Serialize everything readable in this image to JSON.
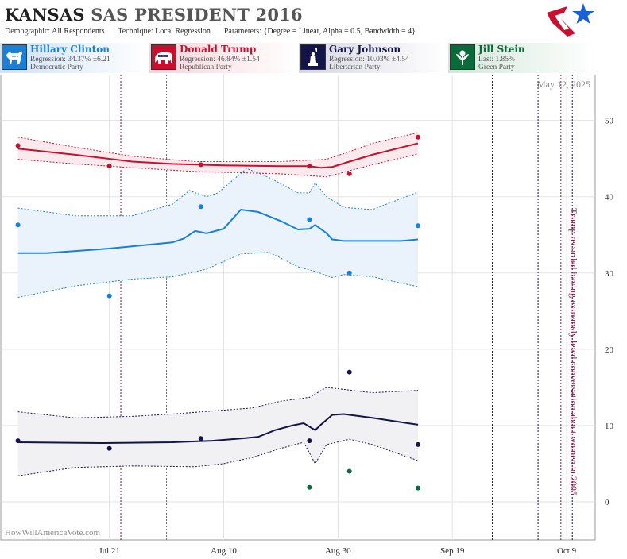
{
  "header": {
    "title_state": "KANSAS",
    "title_rest": "SAS PRESIDENT 2016",
    "params": [
      {
        "key": "Demographic:",
        "value": "All Respondents"
      },
      {
        "key": "Technique:",
        "value": "Local Regression"
      },
      {
        "key": "Parameters:",
        "value": "{Degree = Linear, Alpha = 0.5, Bandwidth = 4}"
      }
    ]
  },
  "legend": [
    {
      "name": "Hillary Clinton",
      "stat": "Regression: 34.37% ±6.21",
      "party": "Democratic Party",
      "color": "#1a7fd6",
      "icon": "donkey-icon"
    },
    {
      "name": "Donald Trump",
      "stat": "Regression: 46.84% ±1.54",
      "party": "Republican Party",
      "color": "#c8102e",
      "icon": "elephant-icon"
    },
    {
      "name": "Gary Johnson",
      "stat": "Regression: 10.03% ±4.54",
      "party": "Libertarian Party",
      "color": "#14144a",
      "icon": "liberty-icon"
    },
    {
      "name": "Jill Stein",
      "stat": "Last: 1.85%",
      "party": "Green Party",
      "color": "#0a6b3a",
      "icon": "flower-icon"
    }
  ],
  "chart_data": {
    "type": "line",
    "date_label": "May 12, 2025",
    "watermark": "HowWillAmericaVote.com",
    "x_ticks": [
      "Jul 21",
      "Aug 10",
      "Aug 30",
      "Sep 19",
      "Oct 9"
    ],
    "y_ticks": [
      0,
      10,
      20,
      30,
      40,
      50
    ],
    "ylim": [
      -5,
      56
    ],
    "xlim": [
      "2016-07-02",
      "2016-10-14"
    ],
    "annotation": "Trump recorded having extremely lewd conversation about women in 2005",
    "series": [
      {
        "name": "Hillary Clinton",
        "color": "#1a7fd6",
        "fill": "#eaf3fc",
        "line": [
          [
            "2016-07-05",
            32.6
          ],
          [
            "2016-07-10",
            32.6
          ],
          [
            "2016-07-21",
            33.2
          ],
          [
            "2016-08-01",
            34.0
          ],
          [
            "2016-08-03",
            34.5
          ],
          [
            "2016-08-05",
            35.5
          ],
          [
            "2016-08-07",
            35.2
          ],
          [
            "2016-08-10",
            35.8
          ],
          [
            "2016-08-13",
            38.3
          ],
          [
            "2016-08-16",
            38.0
          ],
          [
            "2016-08-20",
            36.8
          ],
          [
            "2016-08-23",
            35.7
          ],
          [
            "2016-08-25",
            35.8
          ],
          [
            "2016-08-26",
            36.3
          ],
          [
            "2016-08-28",
            35.2
          ],
          [
            "2016-08-29",
            34.4
          ],
          [
            "2016-08-31",
            34.2
          ],
          [
            "2016-09-10",
            34.2
          ],
          [
            "2016-09-13",
            34.4
          ]
        ],
        "upper": [
          [
            "2016-07-05",
            38.5
          ],
          [
            "2016-07-15",
            37.5
          ],
          [
            "2016-07-25",
            37.5
          ],
          [
            "2016-08-01",
            39.0
          ],
          [
            "2016-08-04",
            40.8
          ],
          [
            "2016-08-07",
            40.0
          ],
          [
            "2016-08-09",
            40.5
          ],
          [
            "2016-08-14",
            43.7
          ],
          [
            "2016-08-18",
            42.5
          ],
          [
            "2016-08-23",
            40.5
          ],
          [
            "2016-08-25",
            40.5
          ],
          [
            "2016-08-26",
            41.8
          ],
          [
            "2016-08-28",
            40.0
          ],
          [
            "2016-08-31",
            38.6
          ],
          [
            "2016-09-05",
            38.3
          ],
          [
            "2016-09-13",
            40.6
          ]
        ],
        "lower": [
          [
            "2016-07-05",
            26.8
          ],
          [
            "2016-07-15",
            28.3
          ],
          [
            "2016-07-25",
            29.2
          ],
          [
            "2016-08-01",
            29.5
          ],
          [
            "2016-08-07",
            30.5
          ],
          [
            "2016-08-13",
            32.5
          ],
          [
            "2016-08-18",
            32.7
          ],
          [
            "2016-08-23",
            30.8
          ],
          [
            "2016-08-26",
            30.2
          ],
          [
            "2016-08-29",
            29.4
          ],
          [
            "2016-08-31",
            29.8
          ],
          [
            "2016-09-05",
            29.5
          ],
          [
            "2016-09-13",
            28.2
          ]
        ],
        "points": [
          [
            "2016-07-05",
            36.3
          ],
          [
            "2016-07-21",
            27.0
          ],
          [
            "2016-08-06",
            38.7
          ],
          [
            "2016-08-25",
            37.0
          ],
          [
            "2016-09-01",
            30.0
          ],
          [
            "2016-09-13",
            36.2
          ]
        ]
      },
      {
        "name": "Donald Trump",
        "color": "#c8102e",
        "fill": "#fbeaed",
        "line": [
          [
            "2016-07-05",
            46.3
          ],
          [
            "2016-07-15",
            45.5
          ],
          [
            "2016-07-25",
            44.6
          ],
          [
            "2016-08-01",
            44.3
          ],
          [
            "2016-08-10",
            44.1
          ],
          [
            "2016-08-20",
            44.0
          ],
          [
            "2016-08-25",
            44.0
          ],
          [
            "2016-08-27",
            43.8
          ],
          [
            "2016-08-29",
            43.9
          ],
          [
            "2016-09-01",
            44.6
          ],
          [
            "2016-09-05",
            45.5
          ],
          [
            "2016-09-13",
            47.0
          ]
        ],
        "upper": [
          [
            "2016-07-05",
            47.8
          ],
          [
            "2016-07-15",
            46.5
          ],
          [
            "2016-07-25",
            45.3
          ],
          [
            "2016-08-05",
            44.6
          ],
          [
            "2016-08-20",
            44.6
          ],
          [
            "2016-08-28",
            44.9
          ],
          [
            "2016-09-01",
            45.9
          ],
          [
            "2016-09-05",
            47.0
          ],
          [
            "2016-09-13",
            48.4
          ]
        ],
        "lower": [
          [
            "2016-07-05",
            44.9
          ],
          [
            "2016-07-15",
            44.3
          ],
          [
            "2016-07-25",
            43.8
          ],
          [
            "2016-08-05",
            43.3
          ],
          [
            "2016-08-20",
            43.0
          ],
          [
            "2016-08-28",
            42.6
          ],
          [
            "2016-09-01",
            43.4
          ],
          [
            "2016-09-05",
            44.2
          ],
          [
            "2016-09-13",
            45.6
          ]
        ],
        "points": [
          [
            "2016-07-05",
            46.7
          ],
          [
            "2016-07-21",
            44.0
          ],
          [
            "2016-08-06",
            44.2
          ],
          [
            "2016-08-25",
            44.0
          ],
          [
            "2016-09-01",
            43.0
          ],
          [
            "2016-09-13",
            47.8
          ]
        ]
      },
      {
        "name": "Gary Johnson",
        "color": "#14144a",
        "fill": "#f1f1f4",
        "line": [
          [
            "2016-07-05",
            7.8
          ],
          [
            "2016-07-20",
            7.7
          ],
          [
            "2016-08-01",
            7.8
          ],
          [
            "2016-08-08",
            8.0
          ],
          [
            "2016-08-13",
            8.3
          ],
          [
            "2016-08-16",
            8.5
          ],
          [
            "2016-08-19",
            9.4
          ],
          [
            "2016-08-22",
            10.0
          ],
          [
            "2016-08-24",
            10.3
          ],
          [
            "2016-08-26",
            9.4
          ],
          [
            "2016-08-27",
            10.1
          ],
          [
            "2016-08-29",
            11.4
          ],
          [
            "2016-08-31",
            11.5
          ],
          [
            "2016-09-05",
            11.0
          ],
          [
            "2016-09-13",
            10.1
          ]
        ],
        "upper": [
          [
            "2016-07-05",
            11.8
          ],
          [
            "2016-07-15",
            11.0
          ],
          [
            "2016-07-25",
            11.2
          ],
          [
            "2016-08-01",
            11.5
          ],
          [
            "2016-08-08",
            11.9
          ],
          [
            "2016-08-15",
            12.3
          ],
          [
            "2016-08-20",
            13.2
          ],
          [
            "2016-08-25",
            13.7
          ],
          [
            "2016-08-28",
            15.0
          ],
          [
            "2016-09-05",
            14.3
          ],
          [
            "2016-09-13",
            14.6
          ]
        ],
        "lower": [
          [
            "2016-07-05",
            3.4
          ],
          [
            "2016-07-15",
            4.5
          ],
          [
            "2016-07-25",
            4.7
          ],
          [
            "2016-08-05",
            4.6
          ],
          [
            "2016-08-10",
            5.0
          ],
          [
            "2016-08-15",
            5.8
          ],
          [
            "2016-08-20",
            7.0
          ],
          [
            "2016-08-24",
            7.8
          ],
          [
            "2016-08-26",
            5.0
          ],
          [
            "2016-08-28",
            7.5
          ],
          [
            "2016-09-01",
            8.2
          ],
          [
            "2016-09-05",
            7.5
          ],
          [
            "2016-09-13",
            5.4
          ]
        ],
        "points": [
          [
            "2016-07-05",
            8.0
          ],
          [
            "2016-07-21",
            7.0
          ],
          [
            "2016-08-06",
            8.3
          ],
          [
            "2016-08-25",
            8.0
          ],
          [
            "2016-09-01",
            17.0
          ],
          [
            "2016-09-13",
            7.5
          ]
        ]
      },
      {
        "name": "Jill Stein",
        "color": "#0a6b3a",
        "points": [
          [
            "2016-08-25",
            1.9
          ],
          [
            "2016-09-01",
            4.0
          ],
          [
            "2016-09-13",
            1.8
          ]
        ]
      }
    ],
    "vlines": [
      {
        "date": "2016-07-23",
        "color": "#8b1538"
      },
      {
        "date": "2016-07-31",
        "color": "#1a7fd6"
      },
      {
        "date": "2016-09-26",
        "color": "#14144a"
      },
      {
        "date": "2016-10-04",
        "color": "#14144a"
      },
      {
        "date": "2016-10-08",
        "color": "#8b1538"
      },
      {
        "date": "2016-10-10",
        "color": "#14144a"
      }
    ]
  }
}
